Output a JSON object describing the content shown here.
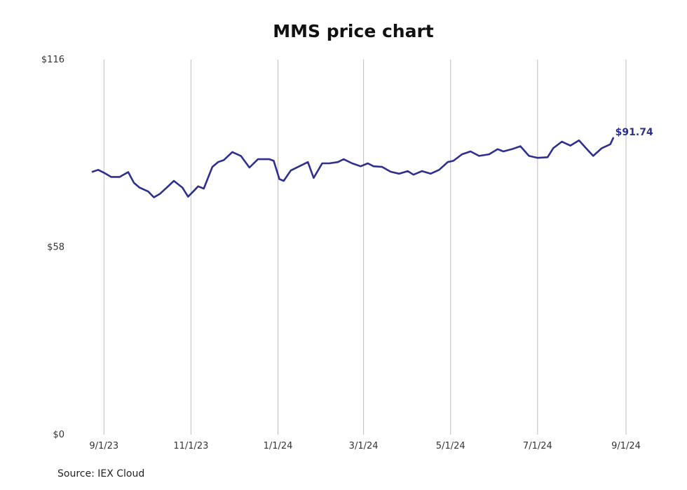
{
  "chart_data": {
    "type": "line",
    "title": "MMS price chart",
    "source": "Source: IEX Cloud",
    "xlabel": "",
    "ylabel": "",
    "x_ticks": [
      "9/1/23",
      "11/1/23",
      "1/1/24",
      "3/1/24",
      "5/1/24",
      "7/1/24",
      "9/1/24"
    ],
    "y_ticks": [
      "$0",
      "$58",
      "$116"
    ],
    "ylim": [
      0,
      116
    ],
    "xlim": [
      "2023-08-24",
      "2024-09-01"
    ],
    "grid": {
      "vertical": true,
      "horizontal": false
    },
    "line_color": "#2f2f8f",
    "end_label": "$91.74",
    "series": [
      {
        "x": [
          "2023-08-24",
          "2023-08-28",
          "2023-09-01",
          "2023-09-06",
          "2023-09-12",
          "2023-09-18",
          "2023-09-22",
          "2023-09-26",
          "2023-10-02",
          "2023-10-06",
          "2023-10-10",
          "2023-10-16",
          "2023-10-20",
          "2023-10-26",
          "2023-10-30",
          "2023-11-03",
          "2023-11-06",
          "2023-11-10",
          "2023-11-16",
          "2023-11-20",
          "2023-11-24",
          "2023-11-30",
          "2023-12-06",
          "2023-12-12",
          "2023-12-18",
          "2023-12-26",
          "2023-12-29",
          "2024-01-02",
          "2024-01-05",
          "2024-01-10",
          "2024-01-16",
          "2024-01-22",
          "2024-01-26",
          "2024-02-01",
          "2024-02-06",
          "2024-02-12",
          "2024-02-16",
          "2024-02-22",
          "2024-02-28",
          "2024-03-04",
          "2024-03-08",
          "2024-03-14",
          "2024-03-20",
          "2024-03-26",
          "2024-04-01",
          "2024-04-05",
          "2024-04-11",
          "2024-04-17",
          "2024-04-23",
          "2024-04-29",
          "2024-05-03",
          "2024-05-09",
          "2024-05-15",
          "2024-05-21",
          "2024-05-28",
          "2024-06-03",
          "2024-06-07",
          "2024-06-13",
          "2024-06-19",
          "2024-06-25",
          "2024-07-01",
          "2024-07-08",
          "2024-07-12",
          "2024-07-18",
          "2024-07-24",
          "2024-07-30",
          "2024-08-05",
          "2024-08-09",
          "2024-08-15",
          "2024-08-21",
          "2024-08-23"
        ],
        "values": [
          81.3,
          81.9,
          81.0,
          79.7,
          79.7,
          81.2,
          77.9,
          76.4,
          75.2,
          73.4,
          74.4,
          76.8,
          78.5,
          76.4,
          73.6,
          75.4,
          76.8,
          76.1,
          82.8,
          84.3,
          84.9,
          87.4,
          86.2,
          82.6,
          85.2,
          85.2,
          84.7,
          79.0,
          78.5,
          81.7,
          83.0,
          84.3,
          79.4,
          83.9,
          83.9,
          84.3,
          85.2,
          83.9,
          83.0,
          83.9,
          83.0,
          82.8,
          81.3,
          80.7,
          81.5,
          80.4,
          81.5,
          80.7,
          81.9,
          84.3,
          84.7,
          86.7,
          87.6,
          86.2,
          86.7,
          88.3,
          87.6,
          88.3,
          89.2,
          86.2,
          85.6,
          85.8,
          88.6,
          90.6,
          89.4,
          91.0,
          88.1,
          86.2,
          88.6,
          89.8,
          91.74
        ]
      }
    ]
  }
}
